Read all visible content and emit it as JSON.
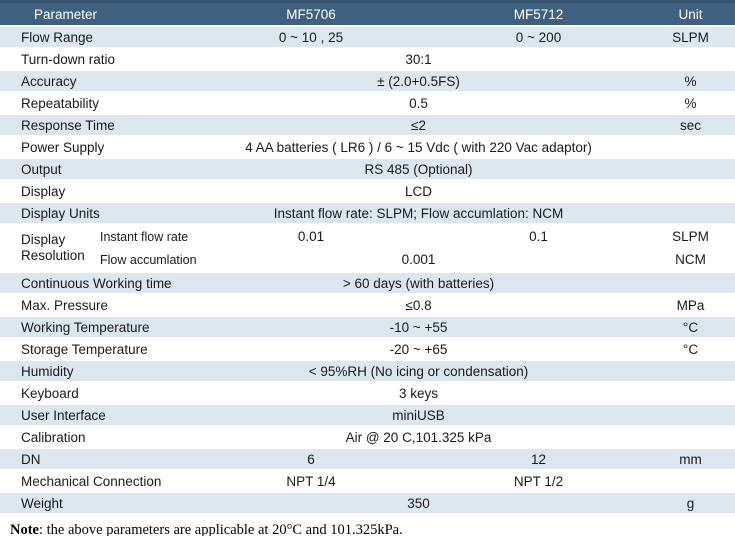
{
  "colors": {
    "header-bg": "#40607F",
    "header-text": "#FFFFFF",
    "stripe": "#DCE6EF",
    "top-border": "#35516E",
    "body-text": "#1A1A1A"
  },
  "table": {
    "header": {
      "parameter": "Parameter",
      "mf5706": "MF5706",
      "mf5712": "MF5712",
      "unit": "Unit"
    },
    "rows": [
      {
        "param": "Flow Range",
        "v1": "0 ~ 10 , 25",
        "v2": "0 ~ 200",
        "unit": "SLPM"
      },
      {
        "param": "Turn-down ratio",
        "value": "30:1",
        "unit": ""
      },
      {
        "param": "Accuracy",
        "value": "± (2.0+0.5FS)",
        "unit": "%"
      },
      {
        "param": "Repeatability",
        "value": "0.5",
        "unit": "%"
      },
      {
        "param": "Response Time",
        "value": "≤2",
        "unit": "sec"
      },
      {
        "param": "Power Supply",
        "value": "4 AA batteries ( LR6 )  / 6 ~ 15 Vdc ( with 220 Vac adaptor)",
        "unit": ""
      },
      {
        "param": "Output",
        "value": "RS 485 (Optional)",
        "unit": ""
      },
      {
        "param": "Display",
        "value": "LCD",
        "unit": ""
      },
      {
        "param": "Display Units",
        "value": "Instant flow rate: SLPM; Flow accumlation: NCM",
        "unit": ""
      },
      {
        "param": "Continuous Working time",
        "value": "> 60 days (with batteries)",
        "unit": ""
      },
      {
        "param": "Max. Pressure",
        "value": "≤0.8",
        "unit": "MPa"
      },
      {
        "param": "Working Temperature",
        "value": "-10 ~ +55",
        "unit": "°C"
      },
      {
        "param": "Storage Temperature",
        "value": "-20 ~ +65",
        "unit": "°C"
      },
      {
        "param": "Humidity",
        "value": "< 95%RH (No icing or condensation)",
        "unit": ""
      },
      {
        "param": "Keyboard",
        "value": "3 keys",
        "unit": ""
      },
      {
        "param": "User Interface",
        "value": "miniUSB",
        "unit": ""
      },
      {
        "param": "Calibration",
        "value": "Air @ 20 C,101.325 kPa",
        "unit": ""
      },
      {
        "param": "DN",
        "v1": "6",
        "v2": "12",
        "unit": "mm"
      },
      {
        "param": "Mechanical Connection",
        "v1": "NPT 1/4",
        "v2": "NPT 1/2",
        "unit": ""
      },
      {
        "param": "Weight",
        "value": "350",
        "unit": "g"
      }
    ],
    "resolution": {
      "param": "Display Resolution",
      "sub1": {
        "label": "Instant flow rate",
        "v1": "0.01",
        "v2": "0.1",
        "unit": "SLPM"
      },
      "sub2": {
        "label": "Flow accumlation",
        "value": "0.001",
        "unit": "NCM"
      }
    }
  },
  "note": {
    "label": "Note",
    "text": ": the above parameters are applicable at 20°C and 101.325kPa."
  }
}
